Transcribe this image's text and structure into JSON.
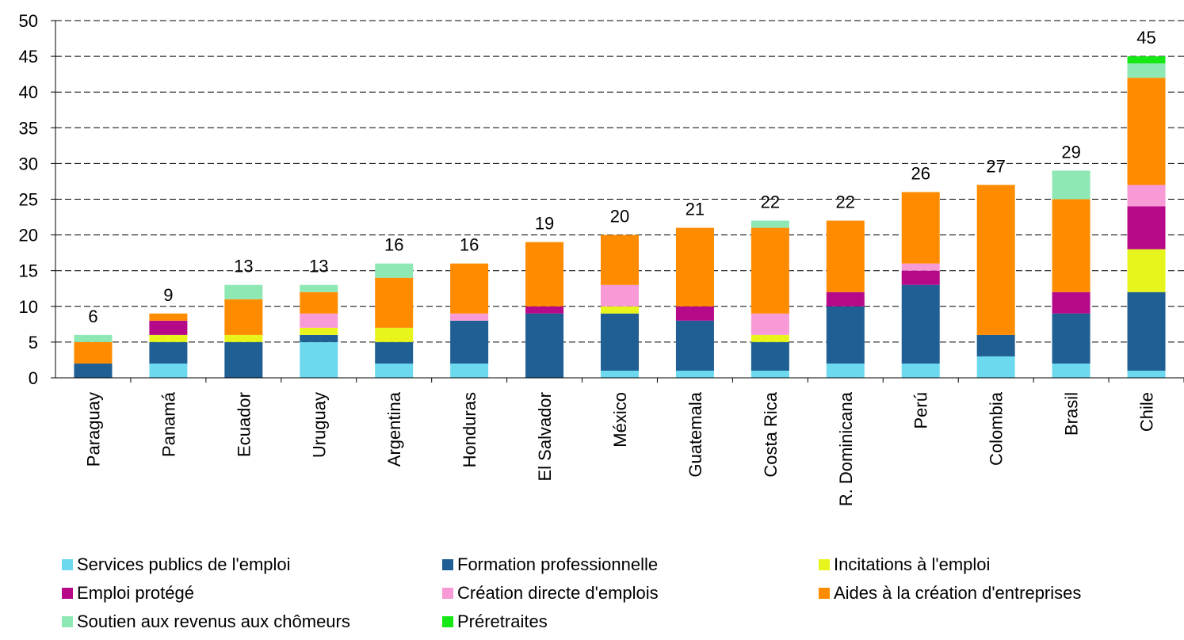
{
  "chart_data": {
    "type": "bar",
    "stacked": true,
    "title": "",
    "xlabel": "",
    "ylabel": "",
    "ylim": [
      0,
      50
    ],
    "yticks": [
      "0",
      "5",
      "10",
      "15",
      "20",
      "25",
      "30",
      "35",
      "40",
      "45",
      "50"
    ],
    "grid": "horizontal dashed",
    "legend_position": "bottom",
    "categories": [
      "Paraguay",
      "Panamá",
      "Ecuador",
      "Uruguay",
      "Argentina",
      "Honduras",
      "El Salvador",
      "México",
      "Guatemala",
      "Costa Rica",
      "R. Dominicana",
      "Perú",
      "Colombia",
      "Brasil",
      "Chile"
    ],
    "totals": [
      "6",
      "9",
      "13",
      "13",
      "16",
      "16",
      "19",
      "20",
      "21",
      "22",
      "22",
      "26",
      "27",
      "29",
      "45"
    ],
    "series": [
      {
        "name": "Services publics de l'emploi",
        "color": "#6dd9ee",
        "values": [
          0,
          2,
          0,
          5,
          2,
          2,
          0,
          1,
          1,
          1,
          2,
          2,
          3,
          2,
          1
        ]
      },
      {
        "name": "Formation professionnelle",
        "color": "#1f5f94",
        "values": [
          2,
          3,
          5,
          1,
          3,
          6,
          9,
          8,
          7,
          4,
          8,
          11,
          3,
          7,
          11
        ]
      },
      {
        "name": "Incitations à l'emploi",
        "color": "#e8f51c",
        "values": [
          0,
          1,
          1,
          1,
          2,
          0,
          0,
          1,
          0,
          1,
          0,
          0,
          0,
          0,
          6
        ]
      },
      {
        "name": "Emploi protégé",
        "color": "#b5098a",
        "values": [
          0,
          2,
          0,
          0,
          0,
          0,
          1,
          0,
          2,
          0,
          2,
          2,
          0,
          3,
          6
        ]
      },
      {
        "name": "Création directe d'emplois",
        "color": "#f79ad6",
        "values": [
          0,
          0,
          0,
          2,
          0,
          1,
          0,
          3,
          0,
          3,
          0,
          1,
          0,
          0,
          3
        ]
      },
      {
        "name": "Aides à la création d'entreprises",
        "color": "#ff8c00",
        "values": [
          3,
          1,
          5,
          3,
          7,
          7,
          9,
          7,
          11,
          12,
          10,
          10,
          21,
          13,
          15
        ]
      },
      {
        "name": "Soutien aux revenus aux chômeurs",
        "color": "#8ee8b4",
        "values": [
          1,
          0,
          2,
          1,
          2,
          0,
          0,
          0,
          0,
          1,
          0,
          0,
          0,
          4,
          2
        ]
      },
      {
        "name": "Préretraites",
        "color": "#16e816",
        "values": [
          0,
          0,
          0,
          0,
          0,
          0,
          0,
          0,
          0,
          0,
          0,
          0,
          0,
          0,
          1
        ]
      }
    ]
  }
}
